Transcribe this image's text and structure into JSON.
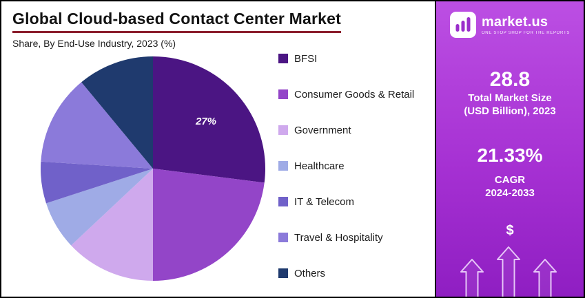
{
  "title": "Global Cloud-based Contact Center Market",
  "subtitle": "Share, By End-Use Industry, 2023 (%)",
  "chart_data": {
    "type": "pie",
    "title": "Global Cloud-based Contact Center Market",
    "subtitle": "Share, By End-Use Industry, 2023 (%)",
    "unit": "%",
    "legend_position": "right",
    "start_angle_deg": 0,
    "direction": "clockwise",
    "slices": [
      {
        "label": "BFSI",
        "value": 27,
        "color": "#4B1583",
        "value_label": "27%"
      },
      {
        "label": "Consumer Goods & Retail",
        "value": 23,
        "color": "#9345C8",
        "value_label": ""
      },
      {
        "label": "Government",
        "value": 13,
        "color": "#CFA9ED",
        "value_label": ""
      },
      {
        "label": "Healthcare",
        "value": 7,
        "color": "#9FABE6",
        "value_label": ""
      },
      {
        "label": "IT & Telecom",
        "value": 6,
        "color": "#7061C9",
        "value_label": ""
      },
      {
        "label": "Travel & Hospitality",
        "value": 13,
        "color": "#8B7ADA",
        "value_label": ""
      },
      {
        "label": "Others",
        "value": 11,
        "color": "#1F3A6E",
        "value_label": ""
      }
    ]
  },
  "sidebar": {
    "logo": {
      "brand": "market.us",
      "tagline": "ONE STOP SHOP FOR THE REPORTS"
    },
    "stats": [
      {
        "value": "28.8",
        "label_line1": "Total Market Size",
        "label_line2": "(USD Billion), 2023"
      },
      {
        "value": "21.33%",
        "label_line1": "CAGR",
        "label_line2": "2024-2033"
      }
    ],
    "dollar_sign": "$",
    "colors": {
      "gradient_top": "#BC4FE3",
      "gradient_bottom": "#8F1EC2"
    }
  },
  "colors": {
    "title_underline": "#8B1E2D",
    "frame_border": "#000000",
    "background": "#FFFFFF",
    "slice_value_label": "#FFFFFF"
  }
}
